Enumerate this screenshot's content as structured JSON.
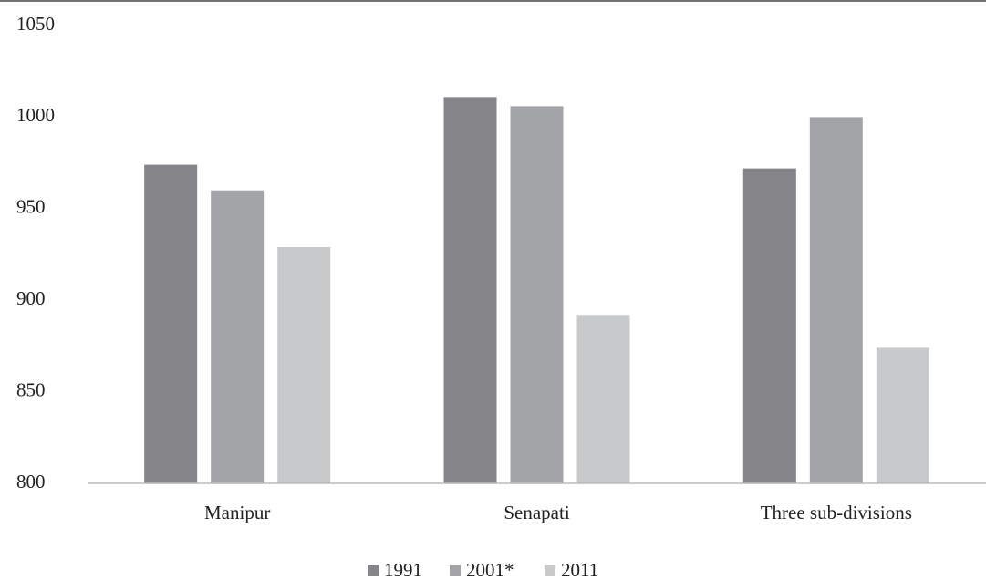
{
  "chart_data": {
    "type": "bar",
    "categories": [
      "Manipur",
      "Senapati",
      "Three sub-divisions"
    ],
    "series": [
      {
        "name": "1991",
        "color": "#858589",
        "values": [
          974,
          1011,
          972
        ]
      },
      {
        "name": "2001*",
        "color": "#a3a4a8",
        "values": [
          960,
          1006,
          1000
        ]
      },
      {
        "name": "2011",
        "color": "#c8c9cb",
        "values": [
          929,
          892,
          874
        ]
      }
    ],
    "ylim": [
      800,
      1050
    ],
    "yticks": [
      800,
      850,
      900,
      950,
      1000,
      1050
    ],
    "grid": false,
    "legend": "bottom"
  }
}
